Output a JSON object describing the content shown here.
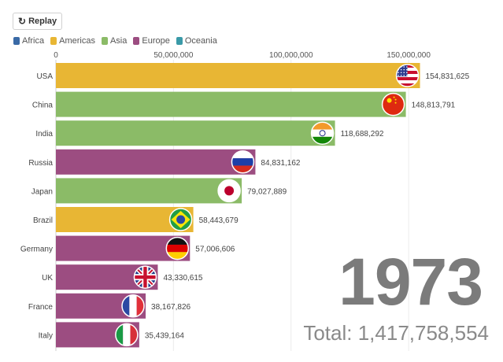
{
  "controls": {
    "replay_label": "Replay",
    "replay_icon": "replay-icon"
  },
  "legend": [
    {
      "label": "Africa",
      "color": "#3a6aa6"
    },
    {
      "label": "Americas",
      "color": "#e8b634"
    },
    {
      "label": "Asia",
      "color": "#8bbb67"
    },
    {
      "label": "Europe",
      "color": "#9c4d81"
    },
    {
      "label": "Oceania",
      "color": "#3a9aa8"
    }
  ],
  "year": "1973",
  "total": {
    "label": "Total:",
    "value": "1,417,758,554"
  },
  "chart_data": {
    "type": "bar",
    "orientation": "horizontal",
    "xlim": [
      0,
      165000000
    ],
    "x_ticks": [
      0,
      50000000,
      100000000,
      150000000
    ],
    "x_tick_labels": [
      "0",
      "50,000,000",
      "100,000,000",
      "150,000,000"
    ],
    "categories": [
      "USA",
      "China",
      "India",
      "Russia",
      "Japan",
      "Brazil",
      "Germany",
      "UK",
      "France",
      "Italy"
    ],
    "values": [
      154831625,
      148813791,
      118688292,
      84831162,
      79027889,
      58443679,
      57006606,
      43330615,
      38167826,
      35439164
    ],
    "value_labels": [
      "154,831,625",
      "148,813,791",
      "118,688,292",
      "84,831,162",
      "79,027,889",
      "58,443,679",
      "57,006,606",
      "43,330,615",
      "38,167,826",
      "35,439,164"
    ],
    "regions": [
      "Americas",
      "Asia",
      "Asia",
      "Europe",
      "Asia",
      "Americas",
      "Europe",
      "Europe",
      "Europe",
      "Europe"
    ],
    "flags": [
      "usa-flag-icon",
      "china-flag-icon",
      "india-flag-icon",
      "russia-flag-icon",
      "japan-flag-icon",
      "brazil-flag-icon",
      "germany-flag-icon",
      "uk-flag-icon",
      "france-flag-icon",
      "italy-flag-icon"
    ]
  }
}
